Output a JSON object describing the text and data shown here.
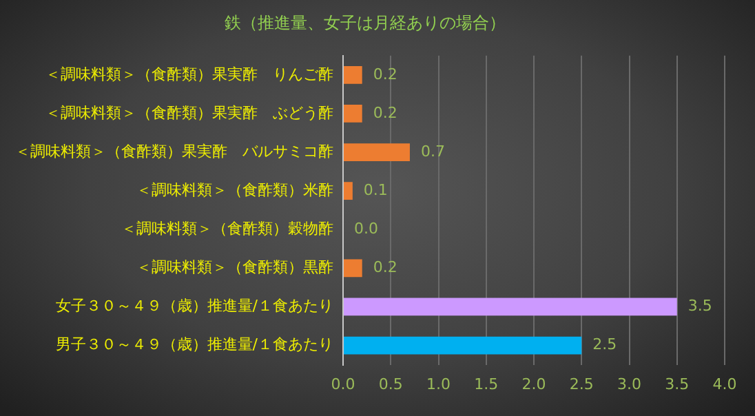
{
  "chart_data": {
    "type": "bar",
    "orientation": "horizontal",
    "title": "鉄（推進量、女子は月経ありの場合）",
    "categories": [
      "＜調味料類＞（食酢類）果実酢　りんご酢",
      "＜調味料類＞（食酢類）果実酢　ぶどう酢",
      "＜調味料類＞（食酢類）果実酢　バルサミコ酢",
      "＜調味料類＞（食酢類）米酢",
      "＜調味料類＞（食酢類）穀物酢",
      "＜調味料類＞（食酢類）黒酢",
      "女子３０～４９（歳）推進量/１食あたり",
      "男子３０～４９（歳）推進量/１食あたり"
    ],
    "values": [
      0.2,
      0.2,
      0.7,
      0.1,
      0,
      0.2,
      3.5,
      2.5
    ],
    "colors": [
      "#ed7d31",
      "#ed7d31",
      "#ed7d31",
      "#ed7d31",
      "#ed7d31",
      "#ed7d31",
      "#cc99ff",
      "#00b0f0"
    ],
    "value_labels": [
      "0.2",
      "0.2",
      "0.7",
      "0.1",
      "0.0",
      "0.2",
      "3.5",
      "2.5"
    ],
    "xlim": [
      0,
      4
    ],
    "xticks": [
      {
        "value": 0,
        "label": "0.0"
      },
      {
        "value": 0.5,
        "label": "0.5"
      },
      {
        "value": 1,
        "label": "1.0"
      },
      {
        "value": 1.5,
        "label": "1.5"
      },
      {
        "value": 2,
        "label": "2.0"
      },
      {
        "value": 2.5,
        "label": "2.5"
      },
      {
        "value": 3,
        "label": "3.0"
      },
      {
        "value": 3.5,
        "label": "3.5"
      },
      {
        "value": 4,
        "label": "4.0"
      }
    ],
    "grid": "x"
  }
}
